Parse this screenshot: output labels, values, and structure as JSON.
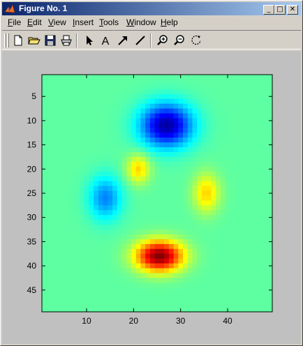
{
  "window": {
    "title": "Figure No. 1",
    "controls": {
      "minimize": "_",
      "maximize": "□",
      "close": "✕"
    }
  },
  "menu": [
    {
      "label": "File",
      "mnemonic": "F"
    },
    {
      "label": "Edit",
      "mnemonic": "E"
    },
    {
      "label": "View",
      "mnemonic": "V"
    },
    {
      "label": "Insert",
      "mnemonic": "I"
    },
    {
      "label": "Tools",
      "mnemonic": "T"
    },
    {
      "label": "Window",
      "mnemonic": "W"
    },
    {
      "label": "Help",
      "mnemonic": "H"
    }
  ],
  "toolbar": {
    "tools": [
      "new-figure-icon",
      "open-icon",
      "save-icon",
      "print-icon",
      "arrow-select-icon",
      "text-icon",
      "arrow-icon",
      "line-icon",
      "zoom-in-icon",
      "zoom-out-icon",
      "rotate-3d-icon"
    ],
    "text_tool_label": "A"
  },
  "chart_data": {
    "type": "heatmap",
    "title": "",
    "xlabel": "",
    "ylabel": "",
    "xlim": [
      0.5,
      49.5
    ],
    "ylim": [
      0.5,
      49.5
    ],
    "y_direction": "reverse",
    "xticks": [
      10,
      20,
      30,
      40
    ],
    "yticks": [
      5,
      10,
      15,
      20,
      25,
      30,
      35,
      40,
      45
    ],
    "grid": false,
    "colormap": "jet",
    "size": [
      49,
      49
    ],
    "background_value": 0,
    "clim": [
      -7,
      8
    ],
    "features": [
      {
        "label": "low-peak-upper",
        "x": 27,
        "y": 11,
        "sx": 5.5,
        "sy": 4.5,
        "amp": -6.5
      },
      {
        "label": "low-peak-left",
        "x": 14,
        "y": 26,
        "sx": 3.5,
        "sy": 4.5,
        "amp": -3.2
      },
      {
        "label": "high-peak-bottom",
        "x": 25.5,
        "y": 38,
        "sx": 5.0,
        "sy": 3.2,
        "amp": 8.0
      },
      {
        "label": "mid-peak-upper",
        "x": 21,
        "y": 20,
        "sx": 2.5,
        "sy": 3.0,
        "amp": 3.0
      },
      {
        "label": "mid-peak-right",
        "x": 35.5,
        "y": 25,
        "sx": 2.8,
        "sy": 4.0,
        "amp": 3.0
      }
    ]
  },
  "colors": {
    "titlebar_start": "#0a246a",
    "titlebar_end": "#a6caf0",
    "chrome": "#d4d0c8",
    "figure_bg": "#c0c0c0"
  }
}
